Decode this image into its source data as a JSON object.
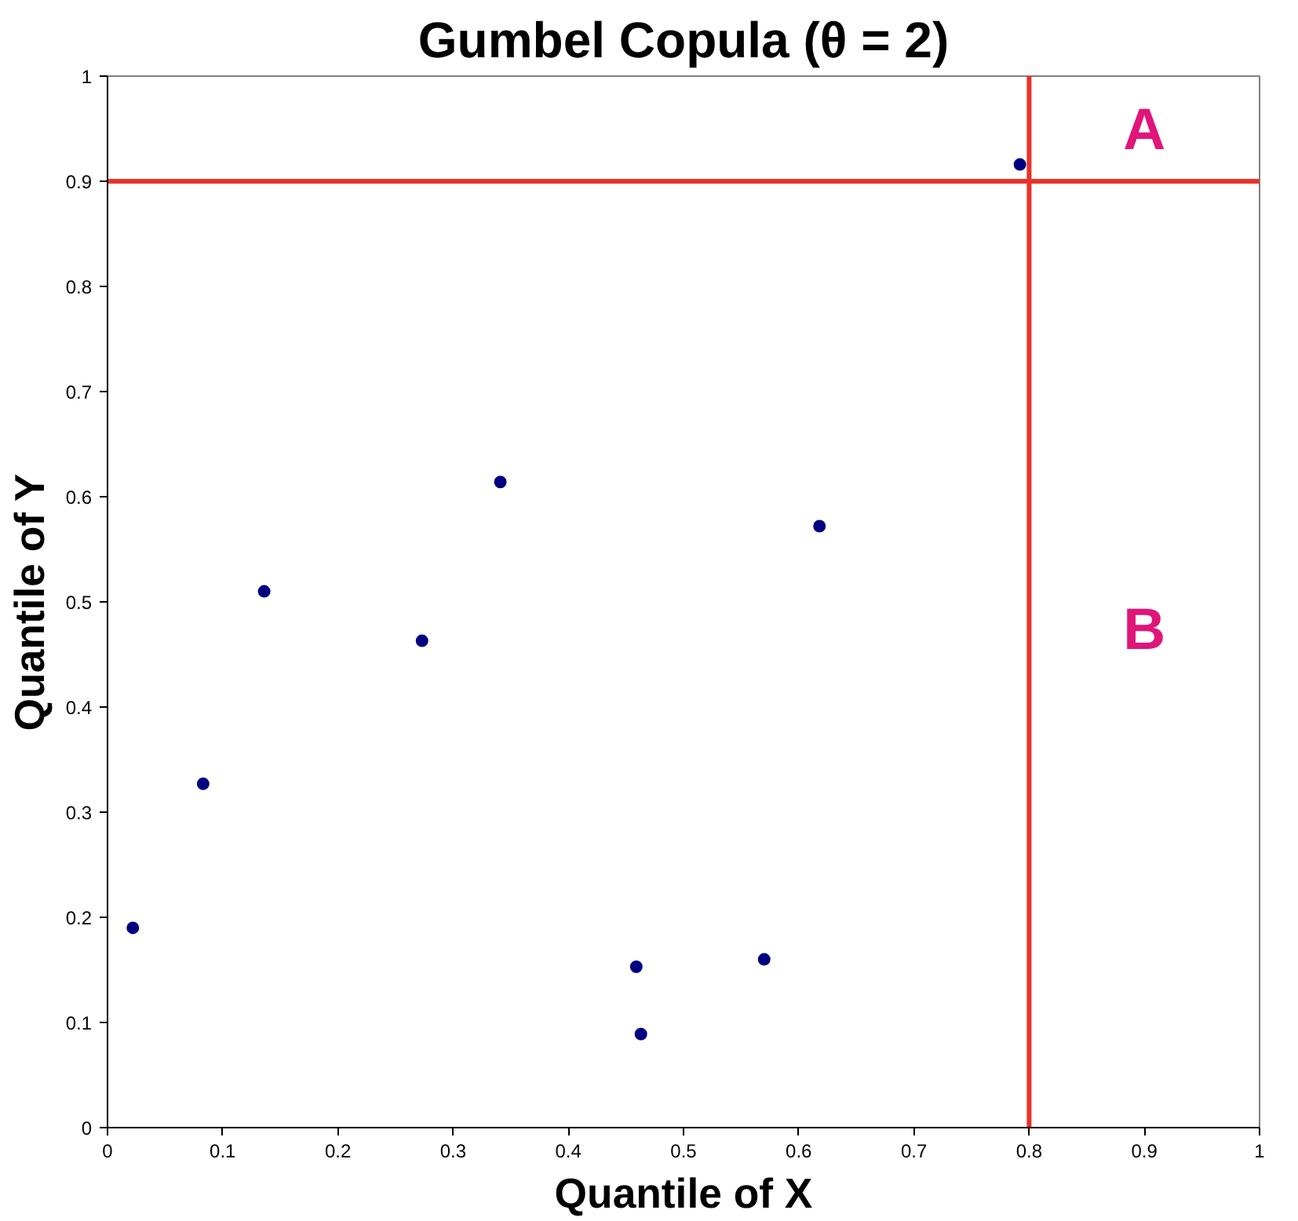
{
  "chart_data": {
    "type": "scatter",
    "title": "Gumbel Copula (θ = 2)",
    "xlabel": "Quantile of X",
    "ylabel": "Quantile of Y",
    "x": [
      0.022,
      0.083,
      0.136,
      0.273,
      0.341,
      0.618,
      0.459,
      0.463,
      0.57,
      0.792
    ],
    "series": [
      {
        "color": "#000080",
        "values": [
          0.19,
          0.327,
          0.51,
          0.463,
          0.614,
          0.572,
          0.153,
          0.089,
          0.16,
          0.916
        ]
      }
    ],
    "xlim": [
      0,
      1
    ],
    "ylim": [
      0,
      1
    ],
    "xticks": [
      0,
      0.1,
      0.2,
      0.3,
      0.4,
      0.5,
      0.6,
      0.7,
      0.8,
      0.9,
      1
    ],
    "yticks": [
      0,
      0.1,
      0.2,
      0.3,
      0.4,
      0.5,
      0.6,
      0.7,
      0.8,
      0.9,
      1
    ],
    "ref_lines": [
      {
        "axis": "x",
        "value": 0.8,
        "color": "#e8322a"
      },
      {
        "axis": "y",
        "value": 0.9,
        "color": "#e8322a"
      }
    ],
    "annotations": [
      "A",
      "B"
    ],
    "grid": false,
    "marker": "circle"
  }
}
